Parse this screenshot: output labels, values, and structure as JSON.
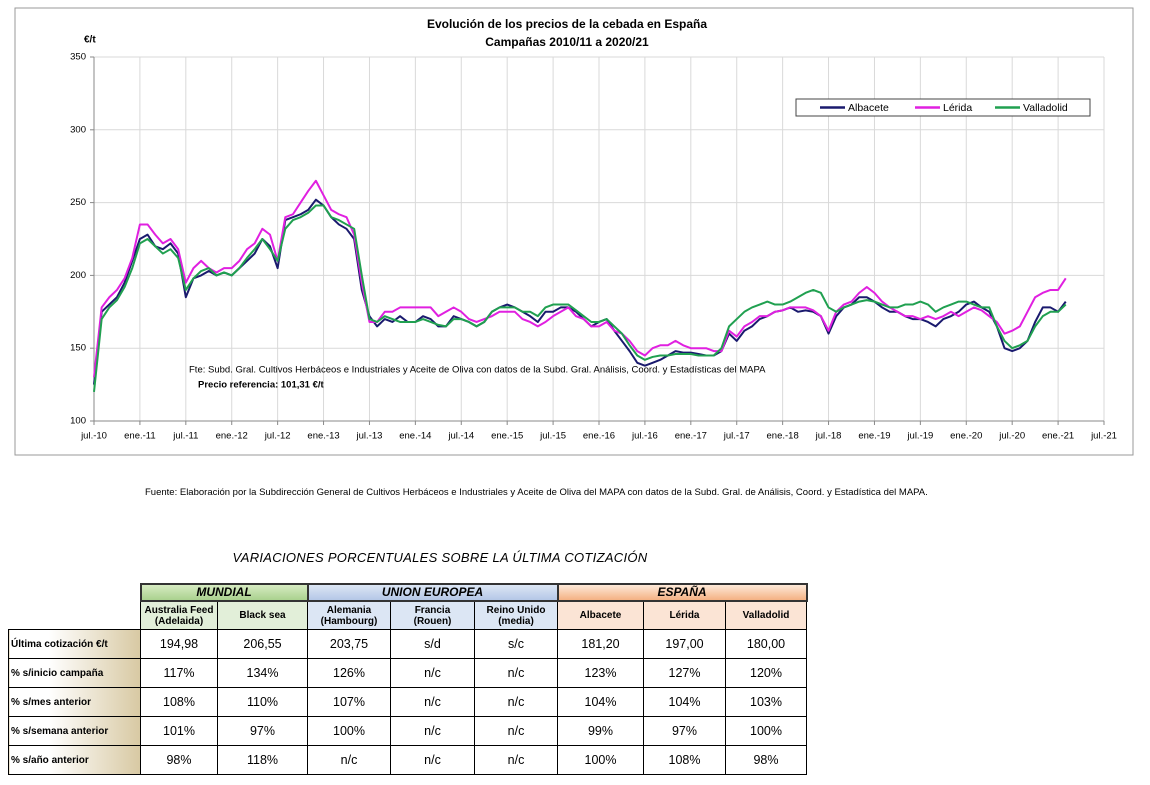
{
  "chart_data": {
    "type": "line",
    "title": [
      "Evolución de los precios de la cebada en España",
      "Campañas 2010/11 a 2020/21"
    ],
    "y_label": "€/t",
    "annotations": [
      "Fte: Subd. Gral. Cultivos Herbáceos e Industriales y Aceite de Oliva con datos de la Subd. Gral. Análisis, Coord. y Estadísticas del MAPA",
      "Precio referencia: 101,31 €/t"
    ],
    "x": [
      "2010-07",
      "2010-08",
      "2010-09",
      "2010-10",
      "2010-11",
      "2010-12",
      "2011-01",
      "2011-02",
      "2011-03",
      "2011-04",
      "2011-05",
      "2011-06",
      "2011-07",
      "2011-08",
      "2011-09",
      "2011-10",
      "2011-11",
      "2011-12",
      "2012-01",
      "2012-02",
      "2012-03",
      "2012-04",
      "2012-05",
      "2012-06",
      "2012-07",
      "2012-08",
      "2012-09",
      "2012-10",
      "2012-11",
      "2012-12",
      "2013-01",
      "2013-02",
      "2013-03",
      "2013-04",
      "2013-05",
      "2013-06",
      "2013-07",
      "2013-08",
      "2013-09",
      "2013-10",
      "2013-11",
      "2013-12",
      "2014-01",
      "2014-02",
      "2014-03",
      "2014-04",
      "2014-05",
      "2014-06",
      "2014-07",
      "2014-08",
      "2014-09",
      "2014-10",
      "2014-11",
      "2014-12",
      "2015-01",
      "2015-02",
      "2015-03",
      "2015-04",
      "2015-05",
      "2015-06",
      "2015-07",
      "2015-08",
      "2015-09",
      "2015-10",
      "2015-11",
      "2015-12",
      "2016-01",
      "2016-02",
      "2016-03",
      "2016-04",
      "2016-05",
      "2016-06",
      "2016-07",
      "2016-08",
      "2016-09",
      "2016-10",
      "2016-11",
      "2016-12",
      "2017-01",
      "2017-02",
      "2017-03",
      "2017-04",
      "2017-05",
      "2017-06",
      "2017-07",
      "2017-08",
      "2017-09",
      "2017-10",
      "2017-11",
      "2017-12",
      "2018-01",
      "2018-02",
      "2018-03",
      "2018-04",
      "2018-05",
      "2018-06",
      "2018-07",
      "2018-08",
      "2018-09",
      "2018-10",
      "2018-11",
      "2018-12",
      "2019-01",
      "2019-02",
      "2019-03",
      "2019-04",
      "2019-05",
      "2019-06",
      "2019-07",
      "2019-08",
      "2019-09",
      "2019-10",
      "2019-11",
      "2019-12",
      "2020-01",
      "2020-02",
      "2020-03",
      "2020-04",
      "2020-05",
      "2020-06",
      "2020-07",
      "2020-08",
      "2020-09",
      "2020-10",
      "2020-11",
      "2020-12",
      "2021-01",
      "2021-02"
    ],
    "series": [
      {
        "name": "Albacete",
        "color": "#1a1a6e",
        "values": [
          125,
          175,
          180,
          185,
          195,
          210,
          225,
          228,
          220,
          218,
          222,
          215,
          185,
          198,
          200,
          203,
          200,
          202,
          200,
          205,
          210,
          215,
          225,
          220,
          205,
          238,
          240,
          242,
          245,
          252,
          248,
          240,
          235,
          232,
          225,
          190,
          172,
          165,
          170,
          168,
          172,
          168,
          168,
          172,
          170,
          165,
          165,
          172,
          170,
          168,
          165,
          168,
          175,
          178,
          180,
          178,
          175,
          172,
          168,
          175,
          175,
          178,
          178,
          175,
          170,
          165,
          168,
          170,
          162,
          155,
          148,
          140,
          138,
          140,
          142,
          145,
          148,
          147,
          147,
          146,
          145,
          145,
          148,
          160,
          155,
          162,
          165,
          170,
          172,
          175,
          176,
          178,
          175,
          176,
          175,
          172,
          160,
          172,
          178,
          180,
          185,
          185,
          182,
          178,
          175,
          175,
          172,
          170,
          170,
          168,
          165,
          170,
          172,
          175,
          180,
          182,
          178,
          175,
          165,
          150,
          148,
          150,
          155,
          168,
          178,
          178,
          175,
          182
        ]
      },
      {
        "name": "Lérida",
        "color": "#e020e0",
        "values": [
          130,
          178,
          185,
          190,
          198,
          212,
          235,
          235,
          228,
          222,
          225,
          218,
          195,
          205,
          210,
          205,
          202,
          205,
          205,
          210,
          218,
          222,
          232,
          228,
          210,
          240,
          242,
          250,
          258,
          265,
          255,
          245,
          242,
          240,
          228,
          195,
          168,
          168,
          175,
          175,
          178,
          178,
          178,
          178,
          178,
          172,
          175,
          178,
          175,
          170,
          168,
          170,
          172,
          175,
          175,
          175,
          170,
          168,
          165,
          168,
          172,
          175,
          178,
          172,
          170,
          165,
          165,
          168,
          162,
          160,
          155,
          148,
          145,
          150,
          152,
          152,
          155,
          152,
          150,
          150,
          150,
          148,
          148,
          162,
          158,
          165,
          168,
          172,
          172,
          175,
          176,
          178,
          178,
          178,
          176,
          172,
          162,
          175,
          180,
          182,
          188,
          192,
          188,
          182,
          178,
          175,
          172,
          172,
          170,
          172,
          170,
          172,
          175,
          172,
          175,
          178,
          176,
          172,
          168,
          160,
          162,
          165,
          175,
          185,
          188,
          190,
          190,
          198
        ]
      },
      {
        "name": "Valladolid",
        "color": "#20a050",
        "values": [
          120,
          170,
          178,
          183,
          192,
          205,
          222,
          225,
          220,
          215,
          218,
          212,
          190,
          198,
          203,
          205,
          200,
          202,
          200,
          205,
          212,
          218,
          225,
          218,
          210,
          232,
          238,
          240,
          243,
          248,
          248,
          240,
          238,
          235,
          232,
          200,
          170,
          168,
          172,
          170,
          168,
          168,
          168,
          170,
          168,
          166,
          165,
          170,
          170,
          168,
          165,
          168,
          175,
          178,
          178,
          178,
          175,
          175,
          172,
          178,
          180,
          180,
          180,
          176,
          172,
          168,
          168,
          170,
          165,
          160,
          152,
          145,
          142,
          144,
          145,
          145,
          146,
          146,
          146,
          145,
          145,
          145,
          150,
          165,
          170,
          175,
          178,
          180,
          182,
          180,
          180,
          182,
          185,
          188,
          190,
          188,
          178,
          175,
          178,
          180,
          182,
          183,
          182,
          180,
          178,
          178,
          180,
          180,
          182,
          180,
          175,
          178,
          180,
          182,
          182,
          180,
          178,
          178,
          165,
          155,
          150,
          152,
          155,
          165,
          172,
          175,
          175,
          180
        ]
      }
    ],
    "xlim": [
      "2010-07",
      "2021-07"
    ],
    "xticks": [
      {
        "value": "2010-07",
        "label": "jul.-10"
      },
      {
        "value": "2011-01",
        "label": "ene.-11"
      },
      {
        "value": "2011-07",
        "label": "jul.-11"
      },
      {
        "value": "2012-01",
        "label": "ene.-12"
      },
      {
        "value": "2012-07",
        "label": "jul.-12"
      },
      {
        "value": "2013-01",
        "label": "ene.-13"
      },
      {
        "value": "2013-07",
        "label": "jul.-13"
      },
      {
        "value": "2014-01",
        "label": "ene.-14"
      },
      {
        "value": "2014-07",
        "label": "jul.-14"
      },
      {
        "value": "2015-01",
        "label": "ene.-15"
      },
      {
        "value": "2015-07",
        "label": "jul.-15"
      },
      {
        "value": "2016-01",
        "label": "ene.-16"
      },
      {
        "value": "2016-07",
        "label": "jul.-16"
      },
      {
        "value": "2017-01",
        "label": "ene.-17"
      },
      {
        "value": "2017-07",
        "label": "jul.-17"
      },
      {
        "value": "2018-01",
        "label": "ene.-18"
      },
      {
        "value": "2018-07",
        "label": "jul.-18"
      },
      {
        "value": "2019-01",
        "label": "ene.-19"
      },
      {
        "value": "2019-07",
        "label": "jul.-19"
      },
      {
        "value": "2020-01",
        "label": "ene.-20"
      },
      {
        "value": "2020-07",
        "label": "jul.-20"
      },
      {
        "value": "2021-01",
        "label": "ene.-21"
      },
      {
        "value": "2021-07",
        "label": "jul.-21"
      }
    ],
    "ylim": [
      100,
      350
    ],
    "yticks": [
      100,
      150,
      200,
      250,
      300,
      350
    ],
    "grid": true,
    "legend": "top-right"
  },
  "source": "Fuente: Elaboración por la Subdirección General de Cultivos Herbáceos e Industriales y Aceite de Oliva del MAPA con datos de la Subd. Gral. de Análisis, Coord. y Estadística del MAPA.",
  "table": {
    "title": "VARIACIONES PORCENTUALES SOBRE LA ÚLTIMA COTIZACIÓN",
    "groups": [
      "MUNDIAL",
      "UNION EUROPEA",
      "ESPAÑA"
    ],
    "columns": [
      [
        "Australia Feed",
        "(Adelaida)"
      ],
      [
        "Black sea"
      ],
      [
        "Alemania",
        "(Hambourg)"
      ],
      [
        "Francia",
        "(Rouen)"
      ],
      [
        "Reino Unido",
        "(media)"
      ],
      [
        "Albacete"
      ],
      [
        "Lérida"
      ],
      [
        "Valladolid"
      ]
    ],
    "rows": [
      [
        "Última cotización €/t",
        "194,98",
        "206,55",
        "203,75",
        "s/d",
        "s/c",
        "181,20",
        "197,00",
        "180,00"
      ],
      [
        "% s/inicio campaña",
        "117%",
        "134%",
        "126%",
        "n/c",
        "n/c",
        "123%",
        "127%",
        "120%"
      ],
      [
        "% s/mes anterior",
        "108%",
        "110%",
        "107%",
        "n/c",
        "n/c",
        "104%",
        "104%",
        "103%"
      ],
      [
        "% s/semana anterior",
        "101%",
        "97%",
        "100%",
        "n/c",
        "n/c",
        "99%",
        "97%",
        "100%"
      ],
      [
        "% s/año anterior",
        "98%",
        "118%",
        "n/c",
        "n/c",
        "n/c",
        "100%",
        "108%",
        "98%"
      ]
    ]
  }
}
